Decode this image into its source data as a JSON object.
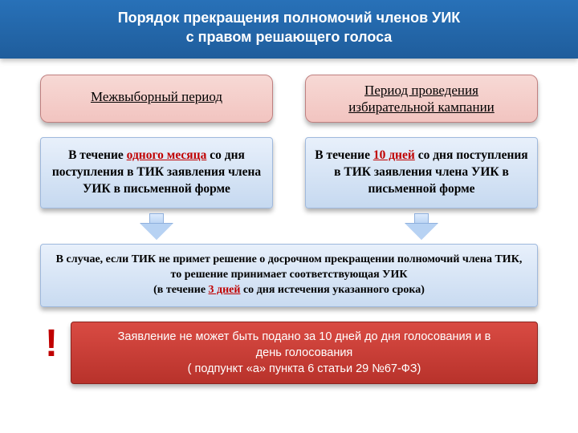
{
  "header": {
    "line1": "Порядок прекращения полномочий членов УИК",
    "line2": "с правом решающего голоса"
  },
  "periods": {
    "left": "Межвыборный период",
    "right_line1": "Период проведения",
    "right_line2": "избирательной кампании"
  },
  "box1": {
    "pre": "В течение ",
    "highlight": "одного месяца",
    "post": " со дня поступления в ТИК заявления члена УИК в письменной форме"
  },
  "box2": {
    "pre": "В течение ",
    "highlight": "10 дней",
    "post": " со дня поступления в ТИК заявления члена УИК в письменной форме"
  },
  "wide": {
    "line1": "В случае, если ТИК не примет решение о досрочном прекращении полномочий члена ТИК,",
    "line2": "то решение принимает соответствующая УИК",
    "line3_pre": "(в течение ",
    "line3_highlight": "3 дней",
    "line3_post": " со дня истечения указанного срока)"
  },
  "alert": {
    "exclaim": "!",
    "line1": "Заявление не может быть подано за 10 дней до дня голосования и в",
    "line2": "день голосования",
    "line3": "( подпункт «а» пункта 6 статьи 29 №67-ФЗ)"
  },
  "colors": {
    "header_bg": "#2871b8",
    "period_bg": "#f2c4c0",
    "box_bg": "#c6d9f0",
    "alert_bg": "#c0392b",
    "red": "#c00000"
  }
}
